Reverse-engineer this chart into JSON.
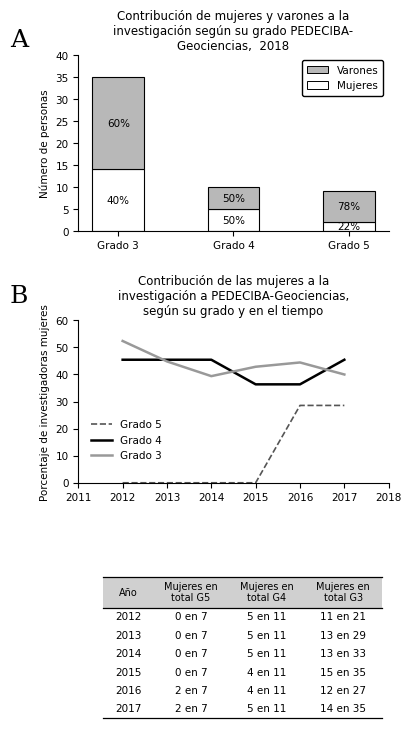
{
  "title_A": "Contribución de mujeres y varones a la\ninvestigación según su grado PEDECIBA-\nGeociencias,  2018",
  "label_A": "A",
  "categories": [
    "Grado 3",
    "Grado 4",
    "Grado 5"
  ],
  "mujeres_vals": [
    14,
    5,
    2
  ],
  "varones_vals": [
    21,
    5,
    7
  ],
  "mujeres_pct": [
    "40%",
    "50%",
    "22%"
  ],
  "varones_pct": [
    "60%",
    "50%",
    "78%"
  ],
  "color_mujeres": "#ffffff",
  "color_varones": "#b8b8b8",
  "ylabel_A": "Número de personas",
  "ylim_A": [
    0,
    40
  ],
  "yticks_A": [
    0,
    5,
    10,
    15,
    20,
    25,
    30,
    35,
    40
  ],
  "legend_varones": "Varones",
  "legend_mujeres": "Mujeres",
  "title_B": "Contribución de las mujeres a la\ninvestigación a PEDECIBA-Geociencias,\nsegún su grado y en el tiempo",
  "label_B": "B",
  "years": [
    2012,
    2013,
    2014,
    2015,
    2016,
    2017
  ],
  "grado5_pct": [
    0,
    0,
    0,
    0,
    28.57,
    28.57
  ],
  "grado4_pct": [
    45.45,
    45.45,
    45.45,
    36.36,
    36.36,
    45.45
  ],
  "grado3_pct": [
    52.38,
    44.83,
    39.39,
    42.86,
    44.44,
    40.0
  ],
  "ylabel_B": "Porcentaje de investigadoras mujeres",
  "ylim_B": [
    0,
    60
  ],
  "yticks_B": [
    0,
    10,
    20,
    30,
    40,
    50,
    60
  ],
  "xlim_B": [
    2011,
    2018
  ],
  "xticks_B": [
    2011,
    2012,
    2013,
    2014,
    2015,
    2016,
    2017,
    2018
  ],
  "color_g5": "#555555",
  "color_g4": "#000000",
  "color_g3": "#999999",
  "legend_g5": "Grado 5",
  "legend_g4": "Grado 4",
  "legend_g3": "Grado 3",
  "table_header": [
    "Año",
    "Mujeres en\ntotal G5",
    "Mujeres en\ntotal G4",
    "Mujeres en\ntotal G3"
  ],
  "table_rows": [
    [
      "2012",
      "0 en 7",
      "5 en 11",
      "11 en 21"
    ],
    [
      "2013",
      "0 en 7",
      "5 en 11",
      "13 en 29"
    ],
    [
      "2014",
      "0 en 7",
      "5 en 11",
      "13 en 33"
    ],
    [
      "2015",
      "0 en 7",
      "4 en 11",
      "15 en 35"
    ],
    [
      "2016",
      "2 en 7",
      "4 en 11",
      "12 en 27"
    ],
    [
      "2017",
      "2 en 7",
      "5 en 11",
      "14 en 35"
    ]
  ],
  "table_header_bg": "#d0d0d0",
  "table_row_bg": "#ffffff",
  "background_color": "#ffffff"
}
